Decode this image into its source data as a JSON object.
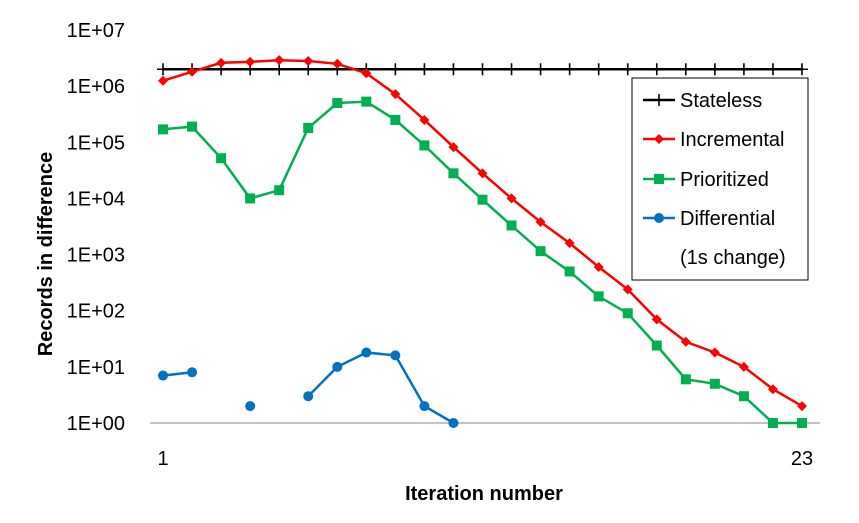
{
  "chart_data": {
    "type": "line",
    "title": "",
    "xlabel": "Iteration number",
    "ylabel": "Records in difference",
    "y_scale": "log",
    "ylim": [
      1,
      10000000
    ],
    "xlim": [
      1,
      23
    ],
    "x_tick_labels": [
      "1",
      "23"
    ],
    "y_tick_labels": [
      "1E+00",
      "1E+01",
      "1E+02",
      "1E+03",
      "1E+04",
      "1E+05",
      "1E+06",
      "1E+07"
    ],
    "grid": false,
    "legend": {
      "placement": "right",
      "boxed": true
    },
    "series": [
      {
        "name": "Stateless",
        "color": "#000000",
        "marker": "plus",
        "x": [
          1,
          2,
          3,
          4,
          5,
          6,
          7,
          8,
          9,
          10,
          11,
          12,
          13,
          14,
          15,
          16,
          17,
          18,
          19,
          20,
          21,
          22,
          23
        ],
        "y": [
          2000000,
          2000000,
          2000000,
          2000000,
          2000000,
          2000000,
          2000000,
          2000000,
          2000000,
          2000000,
          2000000,
          2000000,
          2000000,
          2000000,
          2000000,
          2000000,
          2000000,
          2000000,
          2000000,
          2000000,
          2000000,
          2000000,
          2000000
        ]
      },
      {
        "name": "Incremental",
        "color": "#ff0000",
        "marker": "diamond",
        "x": [
          1,
          2,
          3,
          4,
          5,
          6,
          7,
          8,
          9,
          10,
          11,
          12,
          13,
          14,
          15,
          16,
          17,
          18,
          19,
          20,
          21,
          22,
          23
        ],
        "y": [
          1250000,
          1800000,
          2600000,
          2700000,
          2900000,
          2800000,
          2500000,
          1700000,
          720000,
          250000,
          82000,
          28000,
          10000,
          3800,
          1600,
          600,
          240,
          70,
          28,
          18,
          10,
          4,
          2
        ]
      },
      {
        "name": "Prioritized",
        "color": "#00b050",
        "marker": "square",
        "x": [
          1,
          2,
          3,
          4,
          5,
          6,
          7,
          8,
          9,
          10,
          11,
          12,
          13,
          14,
          15,
          16,
          17,
          18,
          19,
          20,
          21,
          22,
          23
        ],
        "y": [
          170000,
          190000,
          52000,
          10000,
          14000,
          180000,
          500000,
          530000,
          250000,
          88000,
          28000,
          9500,
          3300,
          1150,
          500,
          180,
          90,
          24,
          6,
          5,
          3,
          1,
          1
        ]
      },
      {
        "name": "Differential",
        "label_line2": "(1s change)",
        "color": "#0070c0",
        "marker": "circle",
        "segments": [
          {
            "x": [
              1,
              2
            ],
            "y": [
              7,
              8
            ]
          },
          {
            "x": [
              4
            ],
            "y": [
              2
            ]
          },
          {
            "x": [
              6,
              7,
              8,
              9,
              10,
              11
            ],
            "y": [
              3,
              10,
              18,
              16,
              2,
              1
            ]
          }
        ]
      }
    ]
  }
}
